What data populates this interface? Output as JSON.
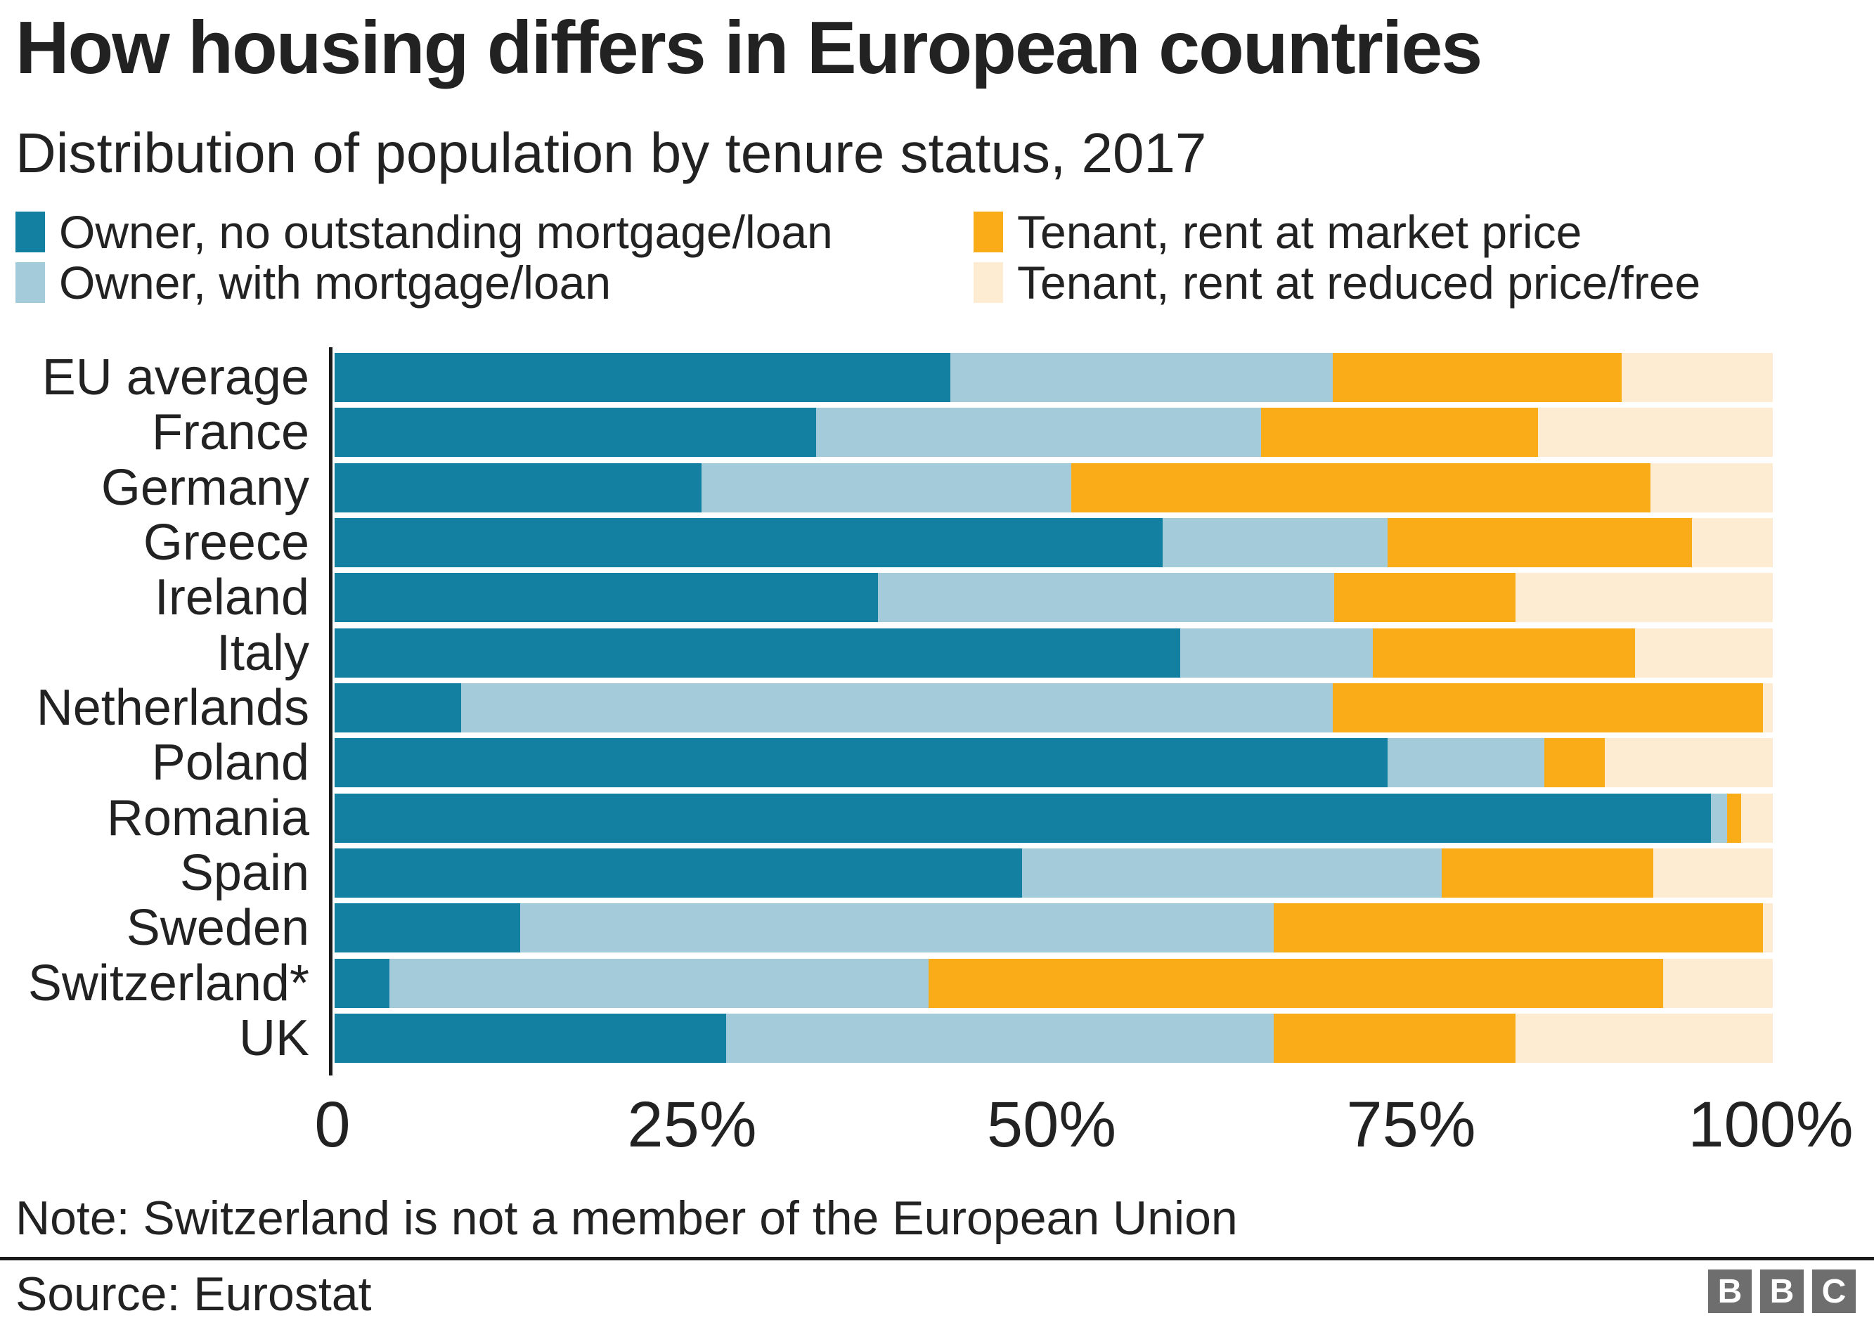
{
  "title": "How housing differs in European countries",
  "subtitle": "Distribution of population by tenure status, 2017",
  "note": "Note: Switzerland is not a member of the European Union",
  "source": "Source: Eurostat",
  "bbc_logo_letters": [
    "B",
    "B",
    "C"
  ],
  "colors": {
    "owner_no_mortgage": "#1380A1",
    "owner_with_mortgage": "#A3CBD9",
    "tenant_market": "#FAAB18",
    "tenant_reduced": "#FDEBD2",
    "text": "#222222",
    "axis_line": "#1a1a1a",
    "bbc_gray": "#6e6e6e"
  },
  "chart_data": {
    "type": "bar",
    "variant": "horizontal-stacked",
    "unit": "%",
    "xlim": [
      0,
      100
    ],
    "grid": false,
    "legend_position": "top",
    "x_tick_labels": [
      "0",
      "25%",
      "50%",
      "75%",
      "100%"
    ],
    "x_tick_values": [
      0,
      25,
      50,
      75,
      100
    ],
    "categories": [
      "EU average",
      "France",
      "Germany",
      "Greece",
      "Ireland",
      "Italy",
      "Netherlands",
      "Poland",
      "Romania",
      "Spain",
      "Sweden",
      "Switzerland*",
      "UK"
    ],
    "series": [
      {
        "name": "Owner, no outstanding mortgage/loan",
        "color": "#1380A1",
        "values": [
          42.8,
          33.5,
          25.5,
          57.6,
          37.8,
          58.8,
          8.8,
          73.2,
          95.7,
          47.8,
          12.9,
          3.8,
          27.2
        ]
      },
      {
        "name": "Owner, with mortgage/loan",
        "color": "#A3CBD9",
        "values": [
          26.6,
          30.9,
          25.7,
          15.6,
          31.7,
          13.4,
          60.6,
          10.9,
          1.1,
          29.2,
          52.4,
          37.5,
          38.1
        ]
      },
      {
        "name": "Tenant, rent at market price",
        "color": "#FAAB18",
        "values": [
          20.1,
          19.3,
          40.3,
          21.2,
          12.6,
          18.2,
          29.9,
          4.2,
          1.0,
          14.7,
          34.0,
          51.1,
          16.8
        ]
      },
      {
        "name": "Tenant, rent at reduced price/free",
        "color": "#FDEBD2",
        "values": [
          10.5,
          16.3,
          8.5,
          5.6,
          17.9,
          9.6,
          0.7,
          11.7,
          2.2,
          8.3,
          0.7,
          7.6,
          17.9
        ]
      }
    ]
  }
}
